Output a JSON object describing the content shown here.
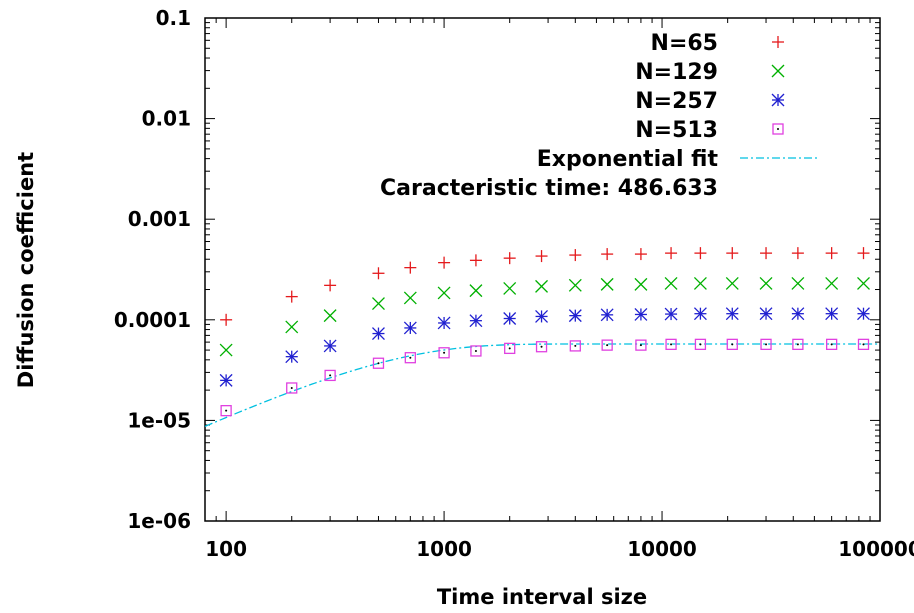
{
  "chart_data": {
    "type": "scatter",
    "title": "",
    "xlabel": "Time interval size",
    "ylabel": "Diffusion coefficient",
    "x_scale": "log",
    "y_scale": "log",
    "xlim": [
      80,
      100000
    ],
    "ylim": [
      1e-06,
      0.1
    ],
    "x_ticks": [
      {
        "value": 100,
        "label": "100"
      },
      {
        "value": 1000,
        "label": "1000"
      },
      {
        "value": 10000,
        "label": "10000"
      },
      {
        "value": 100000,
        "label": "100000"
      }
    ],
    "y_ticks": [
      {
        "value": 0.1,
        "label": "0.1"
      },
      {
        "value": 0.01,
        "label": "0.01"
      },
      {
        "value": 0.001,
        "label": "0.001"
      },
      {
        "value": 0.0001,
        "label": "0.0001"
      },
      {
        "value": 1e-05,
        "label": "1e-05"
      },
      {
        "value": 1e-06,
        "label": "1e-06"
      }
    ],
    "grid": false,
    "legend_position": "top-right",
    "x": [
      100,
      200,
      300,
      500,
      700,
      1000,
      1400,
      2000,
      2800,
      4000,
      5600,
      8000,
      11000,
      15000,
      21000,
      30000,
      42000,
      60000,
      84000
    ],
    "series": [
      {
        "name": "N=65",
        "marker": "plus",
        "color": "#e41a1c",
        "values": [
          0.0001,
          0.00017,
          0.00022,
          0.00029,
          0.00033,
          0.00037,
          0.00039,
          0.00041,
          0.00043,
          0.00044,
          0.00045,
          0.00045,
          0.00046,
          0.00046,
          0.00046,
          0.00046,
          0.00046,
          0.00046,
          0.00046
        ]
      },
      {
        "name": "N=129",
        "marker": "cross",
        "color": "#00b000",
        "values": [
          5e-05,
          8.5e-05,
          0.00011,
          0.000145,
          0.000165,
          0.000185,
          0.000195,
          0.000205,
          0.000215,
          0.00022,
          0.000225,
          0.000225,
          0.00023,
          0.00023,
          0.00023,
          0.00023,
          0.00023,
          0.00023,
          0.00023
        ]
      },
      {
        "name": "N=257",
        "marker": "star",
        "color": "#2020d0",
        "values": [
          2.5e-05,
          4.3e-05,
          5.5e-05,
          7.3e-05,
          8.3e-05,
          9.3e-05,
          9.8e-05,
          0.000103,
          0.000108,
          0.00011,
          0.000112,
          0.000113,
          0.000114,
          0.000115,
          0.000115,
          0.000115,
          0.000115,
          0.000115,
          0.000115
        ]
      },
      {
        "name": "N=513",
        "marker": "box-dot",
        "color": "#e040e0",
        "values": [
          1.25e-05,
          2.1e-05,
          2.8e-05,
          3.7e-05,
          4.2e-05,
          4.7e-05,
          4.9e-05,
          5.2e-05,
          5.4e-05,
          5.5e-05,
          5.6e-05,
          5.6e-05,
          5.7e-05,
          5.7e-05,
          5.7e-05,
          5.7e-05,
          5.7e-05,
          5.7e-05,
          5.7e-05
        ]
      }
    ],
    "fit": {
      "name": "Exponential fit",
      "color": "#00c0e0",
      "style": "dash-dot",
      "plateau": 5.75e-05,
      "tau": 486.633
    },
    "annotation": "Caracteristic time: 486.633"
  }
}
